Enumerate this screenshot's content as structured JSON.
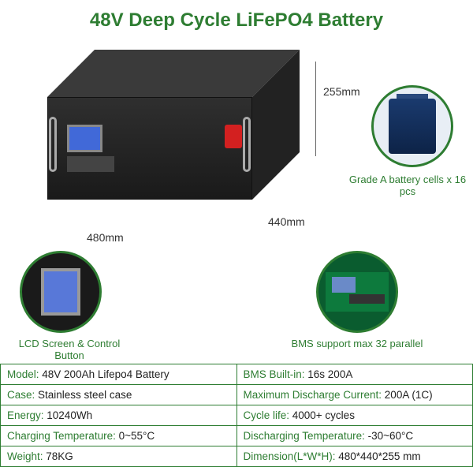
{
  "title": "48V Deep Cycle LiFePO4 Battery",
  "colors": {
    "accent": "#2e7d32",
    "text": "#222222",
    "background": "#ffffff",
    "battery_body": "#2a2a2a",
    "lcd_screen": "#4169d8",
    "switch": "#d32020",
    "cell": "#1a3a6e",
    "bms_board": "#0d7a3d"
  },
  "dimensions": {
    "height": "255mm",
    "depth": "440mm",
    "width": "480mm"
  },
  "details": {
    "cell_caption": "Grade A battery cells x 16 pcs",
    "lcd_caption": "LCD Screen & Control Button",
    "bms_caption": "BMS support max 32 parallel"
  },
  "specs": {
    "rows": [
      {
        "left_label": "Model:",
        "left_value": " 48V 200Ah Lifepo4 Battery",
        "right_label": "BMS Built-in:",
        "right_value": " 16s 200A"
      },
      {
        "left_label": "Case:",
        "left_value": " Stainless steel case",
        "right_label": "Maximum Discharge Current:",
        "right_value": " 200A (1C)"
      },
      {
        "left_label": "Energy:",
        "left_value": " 10240Wh",
        "right_label": "Cycle life:",
        "right_value": " 4000+ cycles"
      },
      {
        "left_label": "Charging Temperature:",
        "left_value": " 0~55°C",
        "right_label": "Discharging Temperature:",
        "right_value": " -30~60°C"
      },
      {
        "left_label": "Weight:",
        "left_value": " 78KG",
        "right_label": "Dimension(L*W*H):",
        "right_value": " 480*440*255 mm"
      }
    ]
  }
}
